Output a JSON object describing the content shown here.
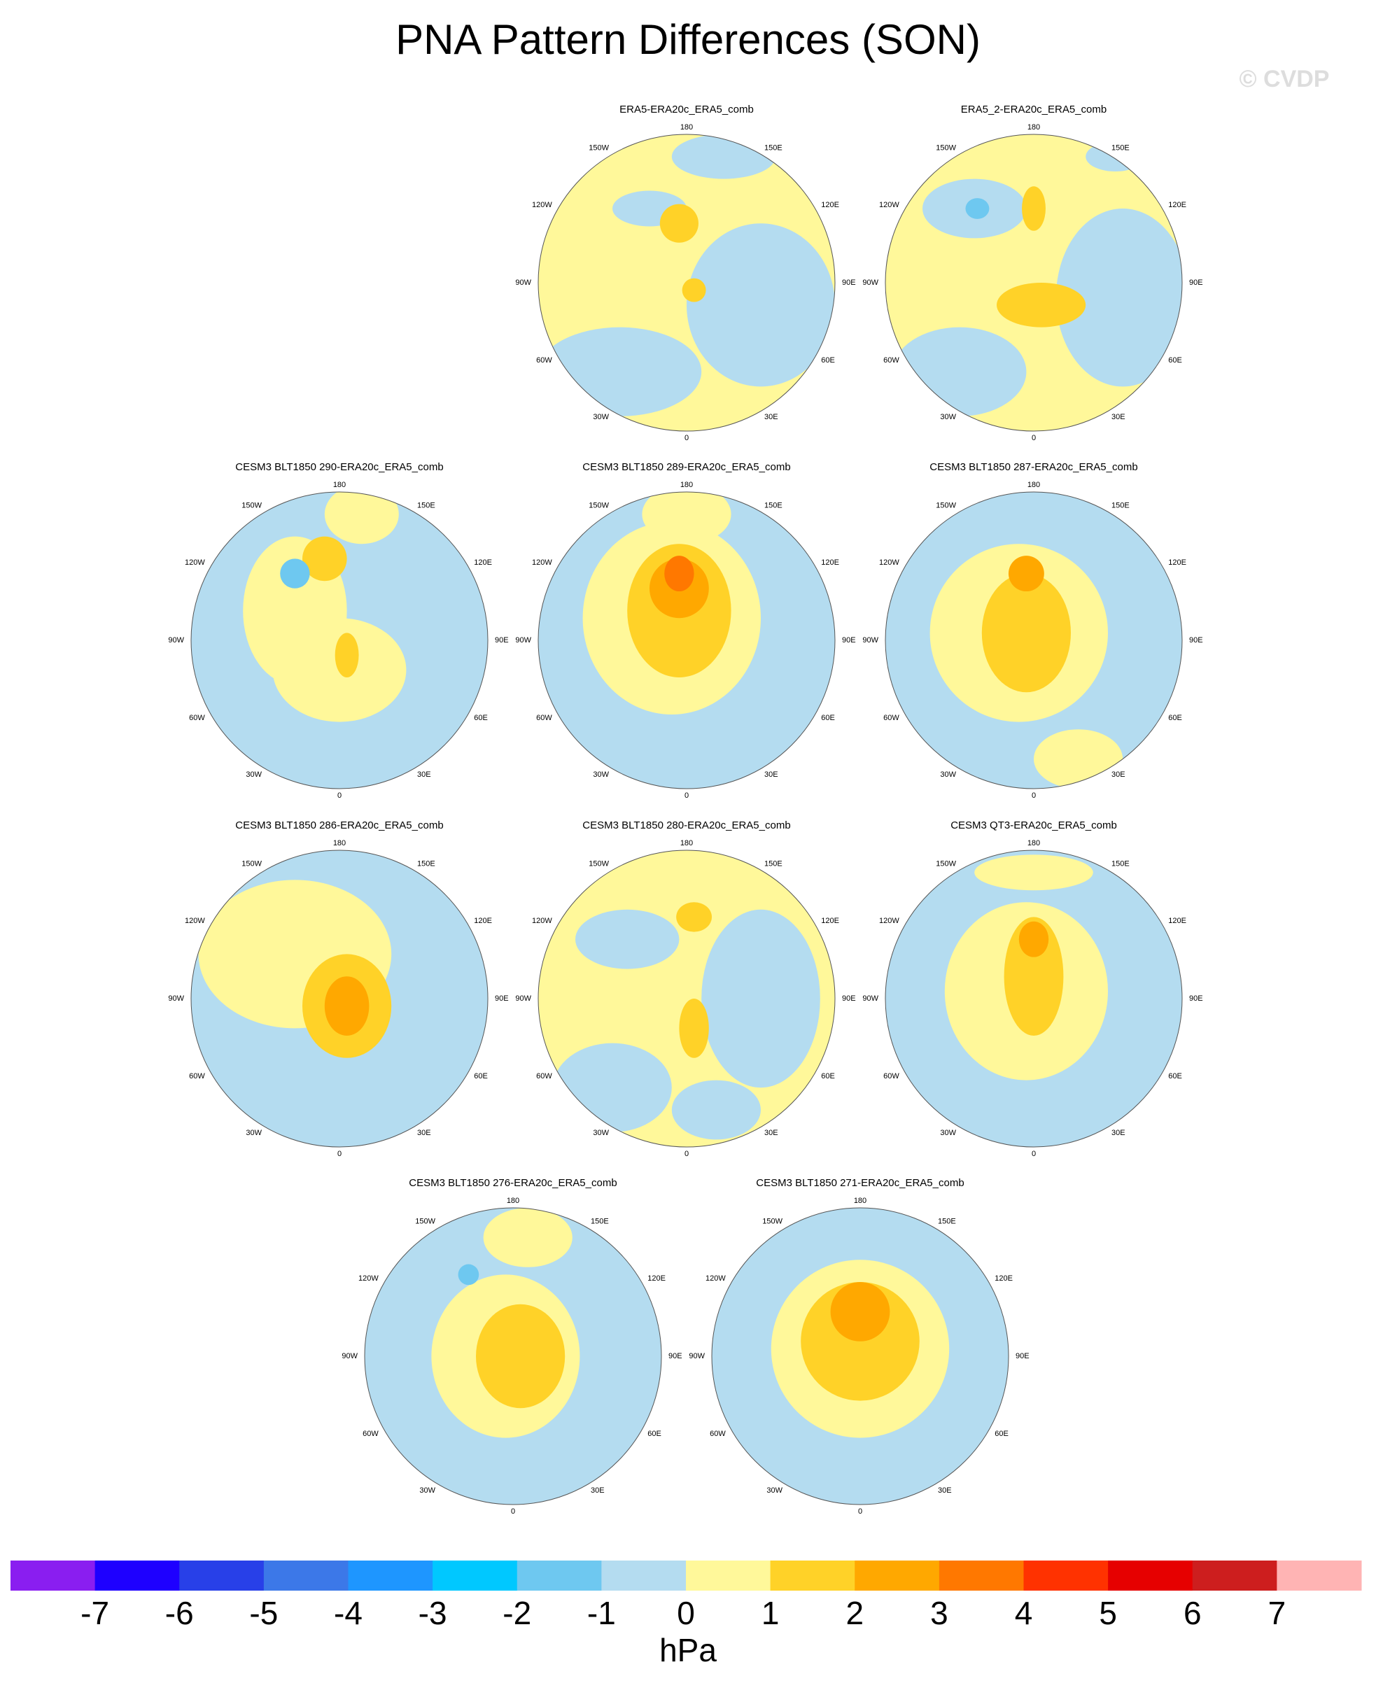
{
  "title": "PNA Pattern Differences (SON)",
  "watermark": "© CVDP",
  "longitude_labels": [
    "180",
    "150E",
    "120E",
    "90E",
    "60E",
    "30E",
    "0",
    "30W",
    "60W",
    "90W",
    "120W",
    "150W"
  ],
  "panels": [
    {
      "title": "ERA5-ERA20c_ERA5_comb"
    },
    {
      "title": "ERA5_2-ERA20c_ERA5_comb"
    },
    {
      "title": "CESM3 BLT1850 290-ERA20c_ERA5_comb"
    },
    {
      "title": "CESM3 BLT1850 289-ERA20c_ERA5_comb"
    },
    {
      "title": "CESM3 BLT1850 287-ERA20c_ERA5_comb"
    },
    {
      "title": "CESM3 BLT1850 286-ERA20c_ERA5_comb"
    },
    {
      "title": "CESM3 BLT1850 280-ERA20c_ERA5_comb"
    },
    {
      "title": "CESM3 QT3-ERA20c_ERA5_comb"
    },
    {
      "title": "CESM3 BLT1850 276-ERA20c_ERA5_comb"
    },
    {
      "title": "CESM3 BLT1850 271-ERA20c_ERA5_comb"
    }
  ],
  "colorbar": {
    "colors": [
      "#8a1ef0",
      "#1e00ff",
      "#2840e8",
      "#3c78e8",
      "#1e96ff",
      "#00c8ff",
      "#6ec8f0",
      "#b4dcf0",
      "#fff89a",
      "#ffd228",
      "#ffa800",
      "#ff7800",
      "#ff3200",
      "#e60000",
      "#cd1e1e",
      "#ffb4b4"
    ],
    "ticks": [
      -7,
      -6,
      -5,
      -4,
      -3,
      -2,
      -1,
      0,
      1,
      2,
      3,
      4,
      5,
      6,
      7
    ],
    "unit": "hPa"
  }
}
